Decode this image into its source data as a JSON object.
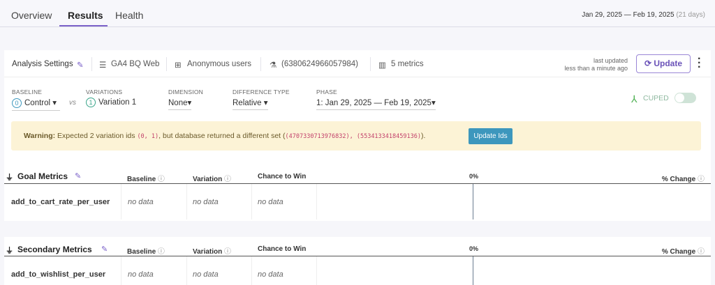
{
  "nav": {
    "tabs": [
      {
        "label": "Overview"
      },
      {
        "label": "Results",
        "active": true
      },
      {
        "label": "Health"
      }
    ],
    "date_range": "Jan 29, 2025 — Feb 19, 2025",
    "duration": "(21 days)"
  },
  "settings": {
    "title": "Analysis Settings",
    "datasource": "GA4 BQ Web",
    "identifier": "Anonymous users",
    "experiment_id": "(6380624966057984)",
    "metrics": "5 metrics",
    "last_updated_label": "last updated",
    "last_updated_value": "less than a minute ago",
    "update_label": "Update"
  },
  "controls": {
    "baseline_label": "BASELINE",
    "baseline_index": "0",
    "baseline_value": "Control",
    "vs": "vs",
    "variations_label": "VARIATIONS",
    "variation_index": "1",
    "variation_value": "Variation 1",
    "dimension_label": "DIMENSION",
    "dimension_value": "None",
    "difference_label": "DIFFERENCE TYPE",
    "difference_value": "Relative",
    "phase_label": "PHASE",
    "phase_value": "1: Jan 29, 2025 — Feb 19, 2025",
    "cuped_label": "CUPED",
    "cuped_enabled": false
  },
  "warning": {
    "prefix": "Warning:",
    "text1": "Expected 2 variation ids",
    "ids": "(0, 1)",
    "text2": ", but database returned a different set (",
    "returned": "(4707330713976832), (5534133418459136)",
    "text3": ").",
    "button": "Update Ids"
  },
  "tables": [
    {
      "title": "Goal Metrics",
      "columns": [
        "Baseline",
        "Variation",
        "Chance to Win",
        "0%",
        "% Change"
      ],
      "rows": [
        {
          "metric": "add_to_cart_rate_per_user",
          "baseline": "no data",
          "variation": "no data",
          "chance": "no data"
        }
      ]
    },
    {
      "title": "Secondary Metrics",
      "columns": [
        "Baseline",
        "Variation",
        "Chance to Win",
        "0%",
        "% Change"
      ],
      "rows": [
        {
          "metric": "add_to_wishlist_per_user",
          "baseline": "no data",
          "variation": "no data",
          "chance": "no data"
        }
      ]
    }
  ],
  "colors": {
    "accent": "#7b61c9",
    "warning_bg": "#fcf3d6",
    "update_ids_button": "#3d97bd"
  }
}
